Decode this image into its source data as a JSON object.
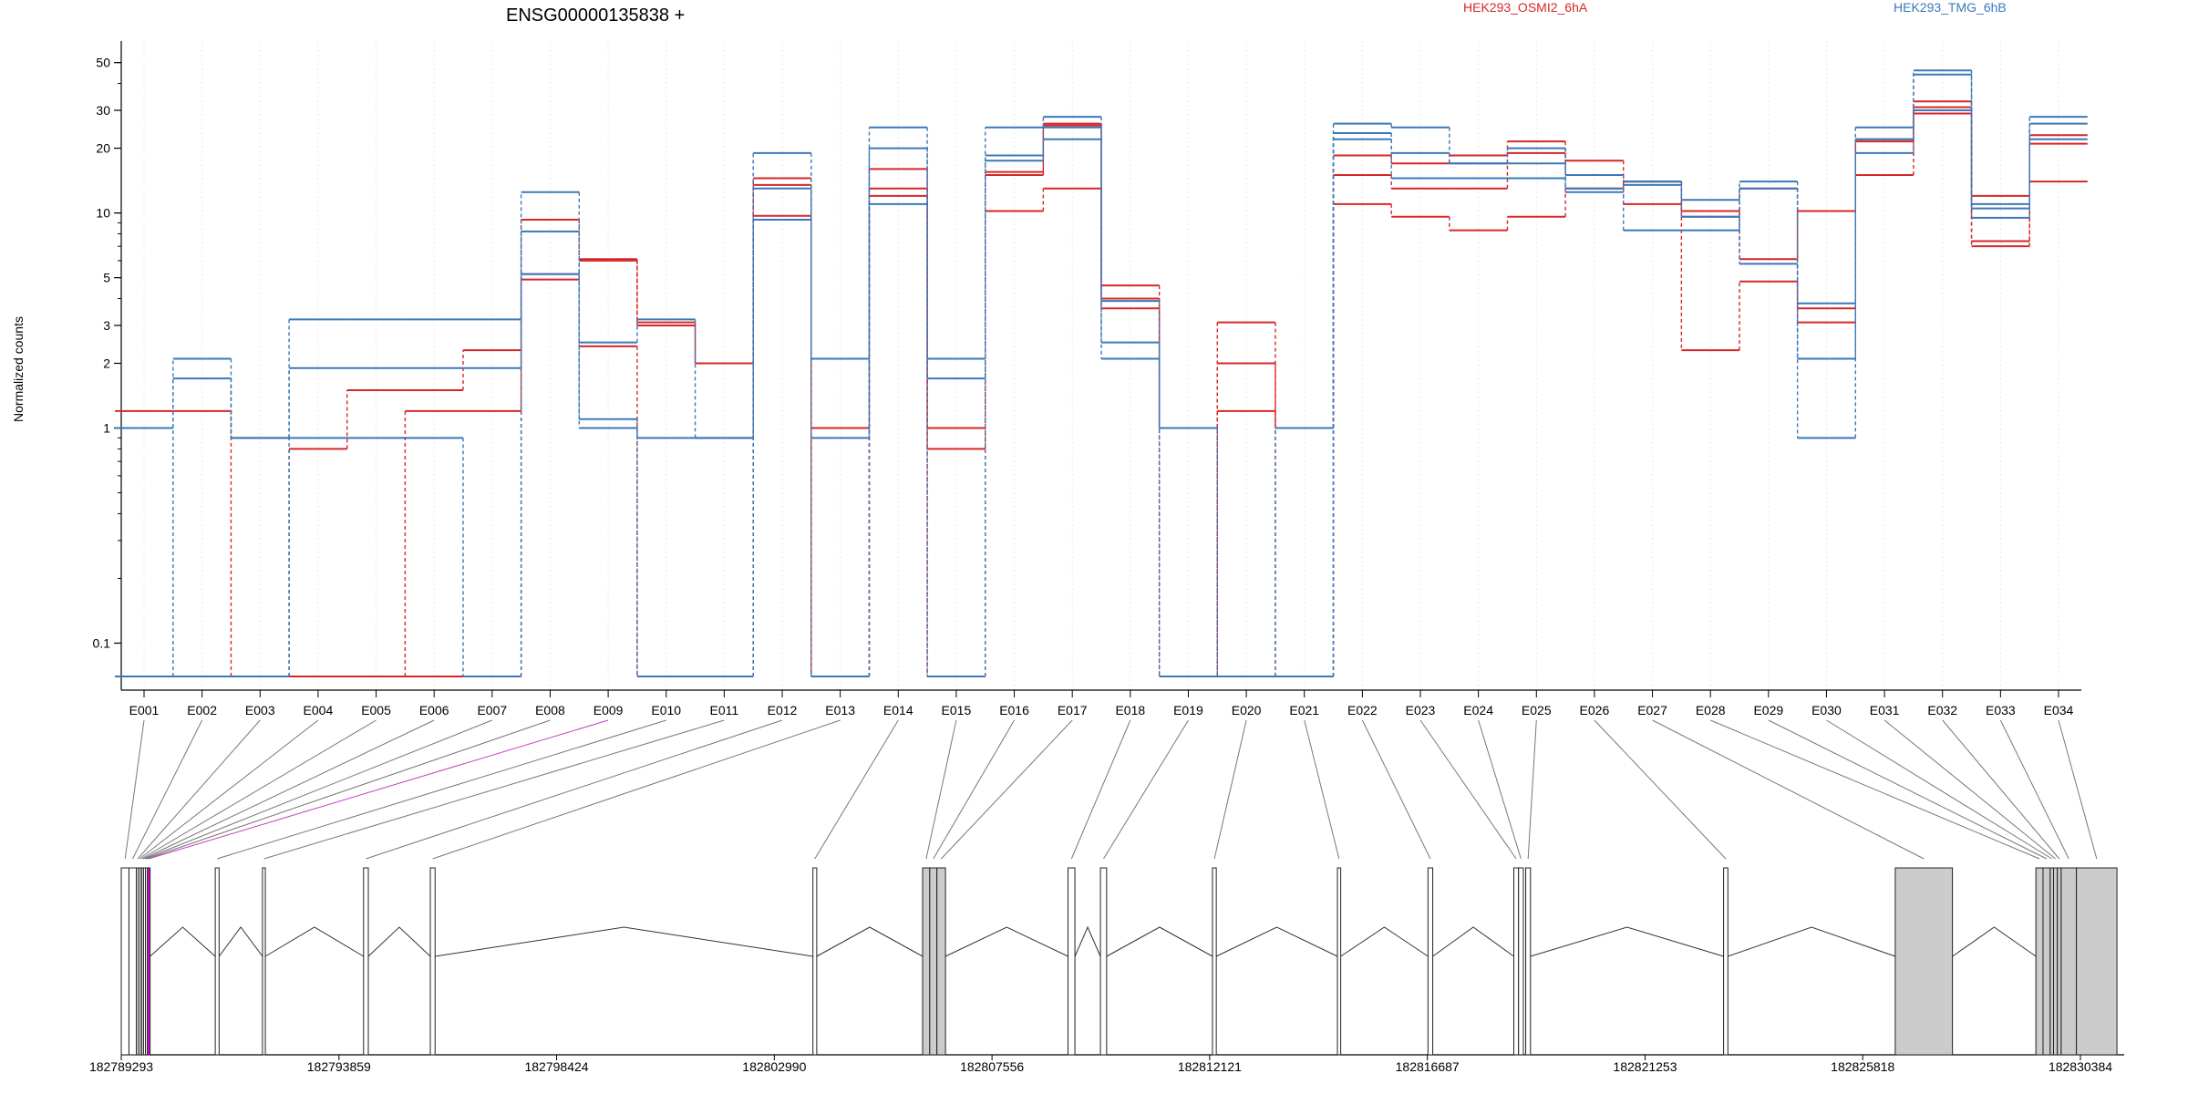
{
  "chart_data": {
    "type": "line",
    "title": "ENSG00000135838 +",
    "ylabel": "Normalized counts",
    "xlabel": "",
    "yscale": "log",
    "yticks": [
      "0.1",
      "1",
      "2",
      "3",
      "5",
      "10",
      "20",
      "30",
      "50"
    ],
    "grid": "vertical",
    "legend_placement": "top-right",
    "categories": [
      "E001",
      "E002",
      "E003",
      "E004",
      "E005",
      "E006",
      "E007",
      "E008",
      "E009",
      "E010",
      "E011",
      "E012",
      "E013",
      "E014",
      "E015",
      "E016",
      "E017",
      "E018",
      "E019",
      "E020",
      "E021",
      "E022",
      "E023",
      "E024",
      "E025",
      "E026",
      "E027",
      "E028",
      "E029",
      "E030",
      "E031",
      "E032",
      "E033",
      "E034"
    ],
    "series": [
      {
        "name": "HEK293_OSMI2_6hA",
        "color": "#d62728",
        "group": "HEK293_OSMI2_6hA",
        "values": [
          1.2,
          1.2,
          0.07,
          0.8,
          1.5,
          1.5,
          2.3,
          9.3,
          6.0,
          3.1,
          2.0,
          14.5,
          1.0,
          16.0,
          1.0,
          15.5,
          26.0,
          4.6,
          1.0,
          3.1,
          1.0,
          18.5,
          17.0,
          18.5,
          21.5,
          17.5,
          14.0,
          10.2,
          6.1,
          10.2,
          22.0,
          33.0,
          12.0,
          23.0
        ]
      },
      {
        "name": "",
        "color": "#d62728",
        "group": "HEK293_OSMI2_6hA",
        "values": [
          0.07,
          0.07,
          0.07,
          0.07,
          0.07,
          1.2,
          1.2,
          4.9,
          6.1,
          3.0,
          2.0,
          13.5,
          0.07,
          13.0,
          0.8,
          15.0,
          25.5,
          4.0,
          1.0,
          2.0,
          1.0,
          15.0,
          13.0,
          13.0,
          19.0,
          15.0,
          11.0,
          2.3,
          4.8,
          3.1,
          15.0,
          31.0,
          7.4,
          21.0
        ]
      },
      {
        "name": "",
        "color": "#d62728",
        "group": "HEK293_OSMI2_6hA",
        "values": [
          0.07,
          0.07,
          0.07,
          0.07,
          0.07,
          0.07,
          0.07,
          5.2,
          2.4,
          0.07,
          0.07,
          9.7,
          0.07,
          12.0,
          0.07,
          10.2,
          13.0,
          3.6,
          0.07,
          1.2,
          0.07,
          11.0,
          9.6,
          8.3,
          9.6,
          13.0,
          14.0,
          9.6,
          13.0,
          3.6,
          21.5,
          29.0,
          7.0,
          14.0
        ]
      },
      {
        "name": "HEK293_TMG_6hB",
        "color": "#3a78b8",
        "group": "HEK293_TMG_6hB",
        "values": [
          1.0,
          2.1,
          0.9,
          3.2,
          3.2,
          3.2,
          3.2,
          12.5,
          2.5,
          3.2,
          0.9,
          19.0,
          2.1,
          25.0,
          2.1,
          25.0,
          28.0,
          2.5,
          1.0,
          0.07,
          0.07,
          26.0,
          25.0,
          17.0,
          20.0,
          15.0,
          14.0,
          11.5,
          14.0,
          3.8,
          25.0,
          46.0,
          11.0,
          28.0
        ]
      },
      {
        "name": "",
        "color": "#3a78b8",
        "group": "HEK293_TMG_6hB",
        "values": [
          0.07,
          1.7,
          0.9,
          1.9,
          1.9,
          1.9,
          1.9,
          8.2,
          1.1,
          0.9,
          0.9,
          13.0,
          0.9,
          20.0,
          1.7,
          18.5,
          22.0,
          3.9,
          0.07,
          0.07,
          0.07,
          23.5,
          19.0,
          17.0,
          17.0,
          13.0,
          8.3,
          8.3,
          13.0,
          2.1,
          19.0,
          44.0,
          10.5,
          26.0
        ]
      },
      {
        "name": "",
        "color": "#3a78b8",
        "group": "HEK293_TMG_6hB",
        "values": [
          0.07,
          0.07,
          0.07,
          0.9,
          0.9,
          0.9,
          0.07,
          5.2,
          1.0,
          0.07,
          0.07,
          9.3,
          0.07,
          11.0,
          0.07,
          17.5,
          25.0,
          2.1,
          1.0,
          0.07,
          1.0,
          22.0,
          14.5,
          14.5,
          14.5,
          12.5,
          13.5,
          9.6,
          5.8,
          0.9,
          22.0,
          30.0,
          9.5,
          22.0
        ]
      }
    ],
    "genomic_axis": {
      "ticks": [
        "182789293",
        "182793859",
        "182798424",
        "182802990",
        "182807556",
        "182812121",
        "182816687",
        "182821253",
        "182825818",
        "182830384"
      ],
      "range": [
        182789293,
        182830384
      ]
    },
    "exons": [
      {
        "id": "E001",
        "start": 182789293,
        "end": 182789455,
        "filled": false
      },
      {
        "id": "E002",
        "start": 182789455,
        "end": 182789610,
        "filled": false
      },
      {
        "id": "E003",
        "start": 182789610,
        "end": 182789650,
        "filled": false
      },
      {
        "id": "E004",
        "start": 182789650,
        "end": 182789690,
        "filled": false
      },
      {
        "id": "E005",
        "start": 182789690,
        "end": 182789725,
        "filled": false
      },
      {
        "id": "E006",
        "start": 182789725,
        "end": 182789760,
        "filled": false
      },
      {
        "id": "E007",
        "start": 182789760,
        "end": 182789800,
        "filled": false
      },
      {
        "id": "E008",
        "start": 182789800,
        "end": 182789840,
        "filled": false
      },
      {
        "id": "E009",
        "start": 182789840,
        "end": 182789880,
        "filled": false,
        "highlight": true
      },
      {
        "id": "E010",
        "start": 182791265,
        "end": 182791345,
        "filled": false
      },
      {
        "id": "E011",
        "start": 182792255,
        "end": 182792315,
        "filled": false
      },
      {
        "id": "E012",
        "start": 182794375,
        "end": 182794475,
        "filled": false
      },
      {
        "id": "E013",
        "start": 182795775,
        "end": 182795875,
        "filled": false
      },
      {
        "id": "E014",
        "start": 182803800,
        "end": 182803880,
        "filled": false
      },
      {
        "id": "E015",
        "start": 182806100,
        "end": 182806250,
        "filled": true
      },
      {
        "id": "E016",
        "start": 182806250,
        "end": 182806400,
        "filled": true
      },
      {
        "id": "E017",
        "start": 182806400,
        "end": 182806580,
        "filled": true
      },
      {
        "id": "E018",
        "start": 182809150,
        "end": 182809295,
        "filled": false
      },
      {
        "id": "E019",
        "start": 182809830,
        "end": 182809960,
        "filled": false
      },
      {
        "id": "E020",
        "start": 182812180,
        "end": 182812260,
        "filled": false
      },
      {
        "id": "E021",
        "start": 182814800,
        "end": 182814870,
        "filled": false
      },
      {
        "id": "E022",
        "start": 182816700,
        "end": 182816800,
        "filled": false
      },
      {
        "id": "E023",
        "start": 182818500,
        "end": 182818600,
        "filled": false
      },
      {
        "id": "E024",
        "start": 182818600,
        "end": 182818700,
        "filled": false
      },
      {
        "id": "E025",
        "start": 182818750,
        "end": 182818850,
        "filled": false
      },
      {
        "id": "E026",
        "start": 182822900,
        "end": 182822990,
        "filled": false
      },
      {
        "id": "E027",
        "start": 182826500,
        "end": 182827700,
        "filled": true
      },
      {
        "id": "E028",
        "start": 182829450,
        "end": 182829600,
        "filled": true
      },
      {
        "id": "E029",
        "start": 182829600,
        "end": 182829750,
        "filled": true
      },
      {
        "id": "E030",
        "start": 182829750,
        "end": 182829820,
        "filled": true
      },
      {
        "id": "E031",
        "start": 182829820,
        "end": 182829900,
        "filled": true
      },
      {
        "id": "E032",
        "start": 182829900,
        "end": 182829980,
        "filled": true
      },
      {
        "id": "E033",
        "start": 182829980,
        "end": 182830300,
        "filled": true
      },
      {
        "id": "E034",
        "start": 182830300,
        "end": 182831150,
        "filled": true
      }
    ]
  }
}
